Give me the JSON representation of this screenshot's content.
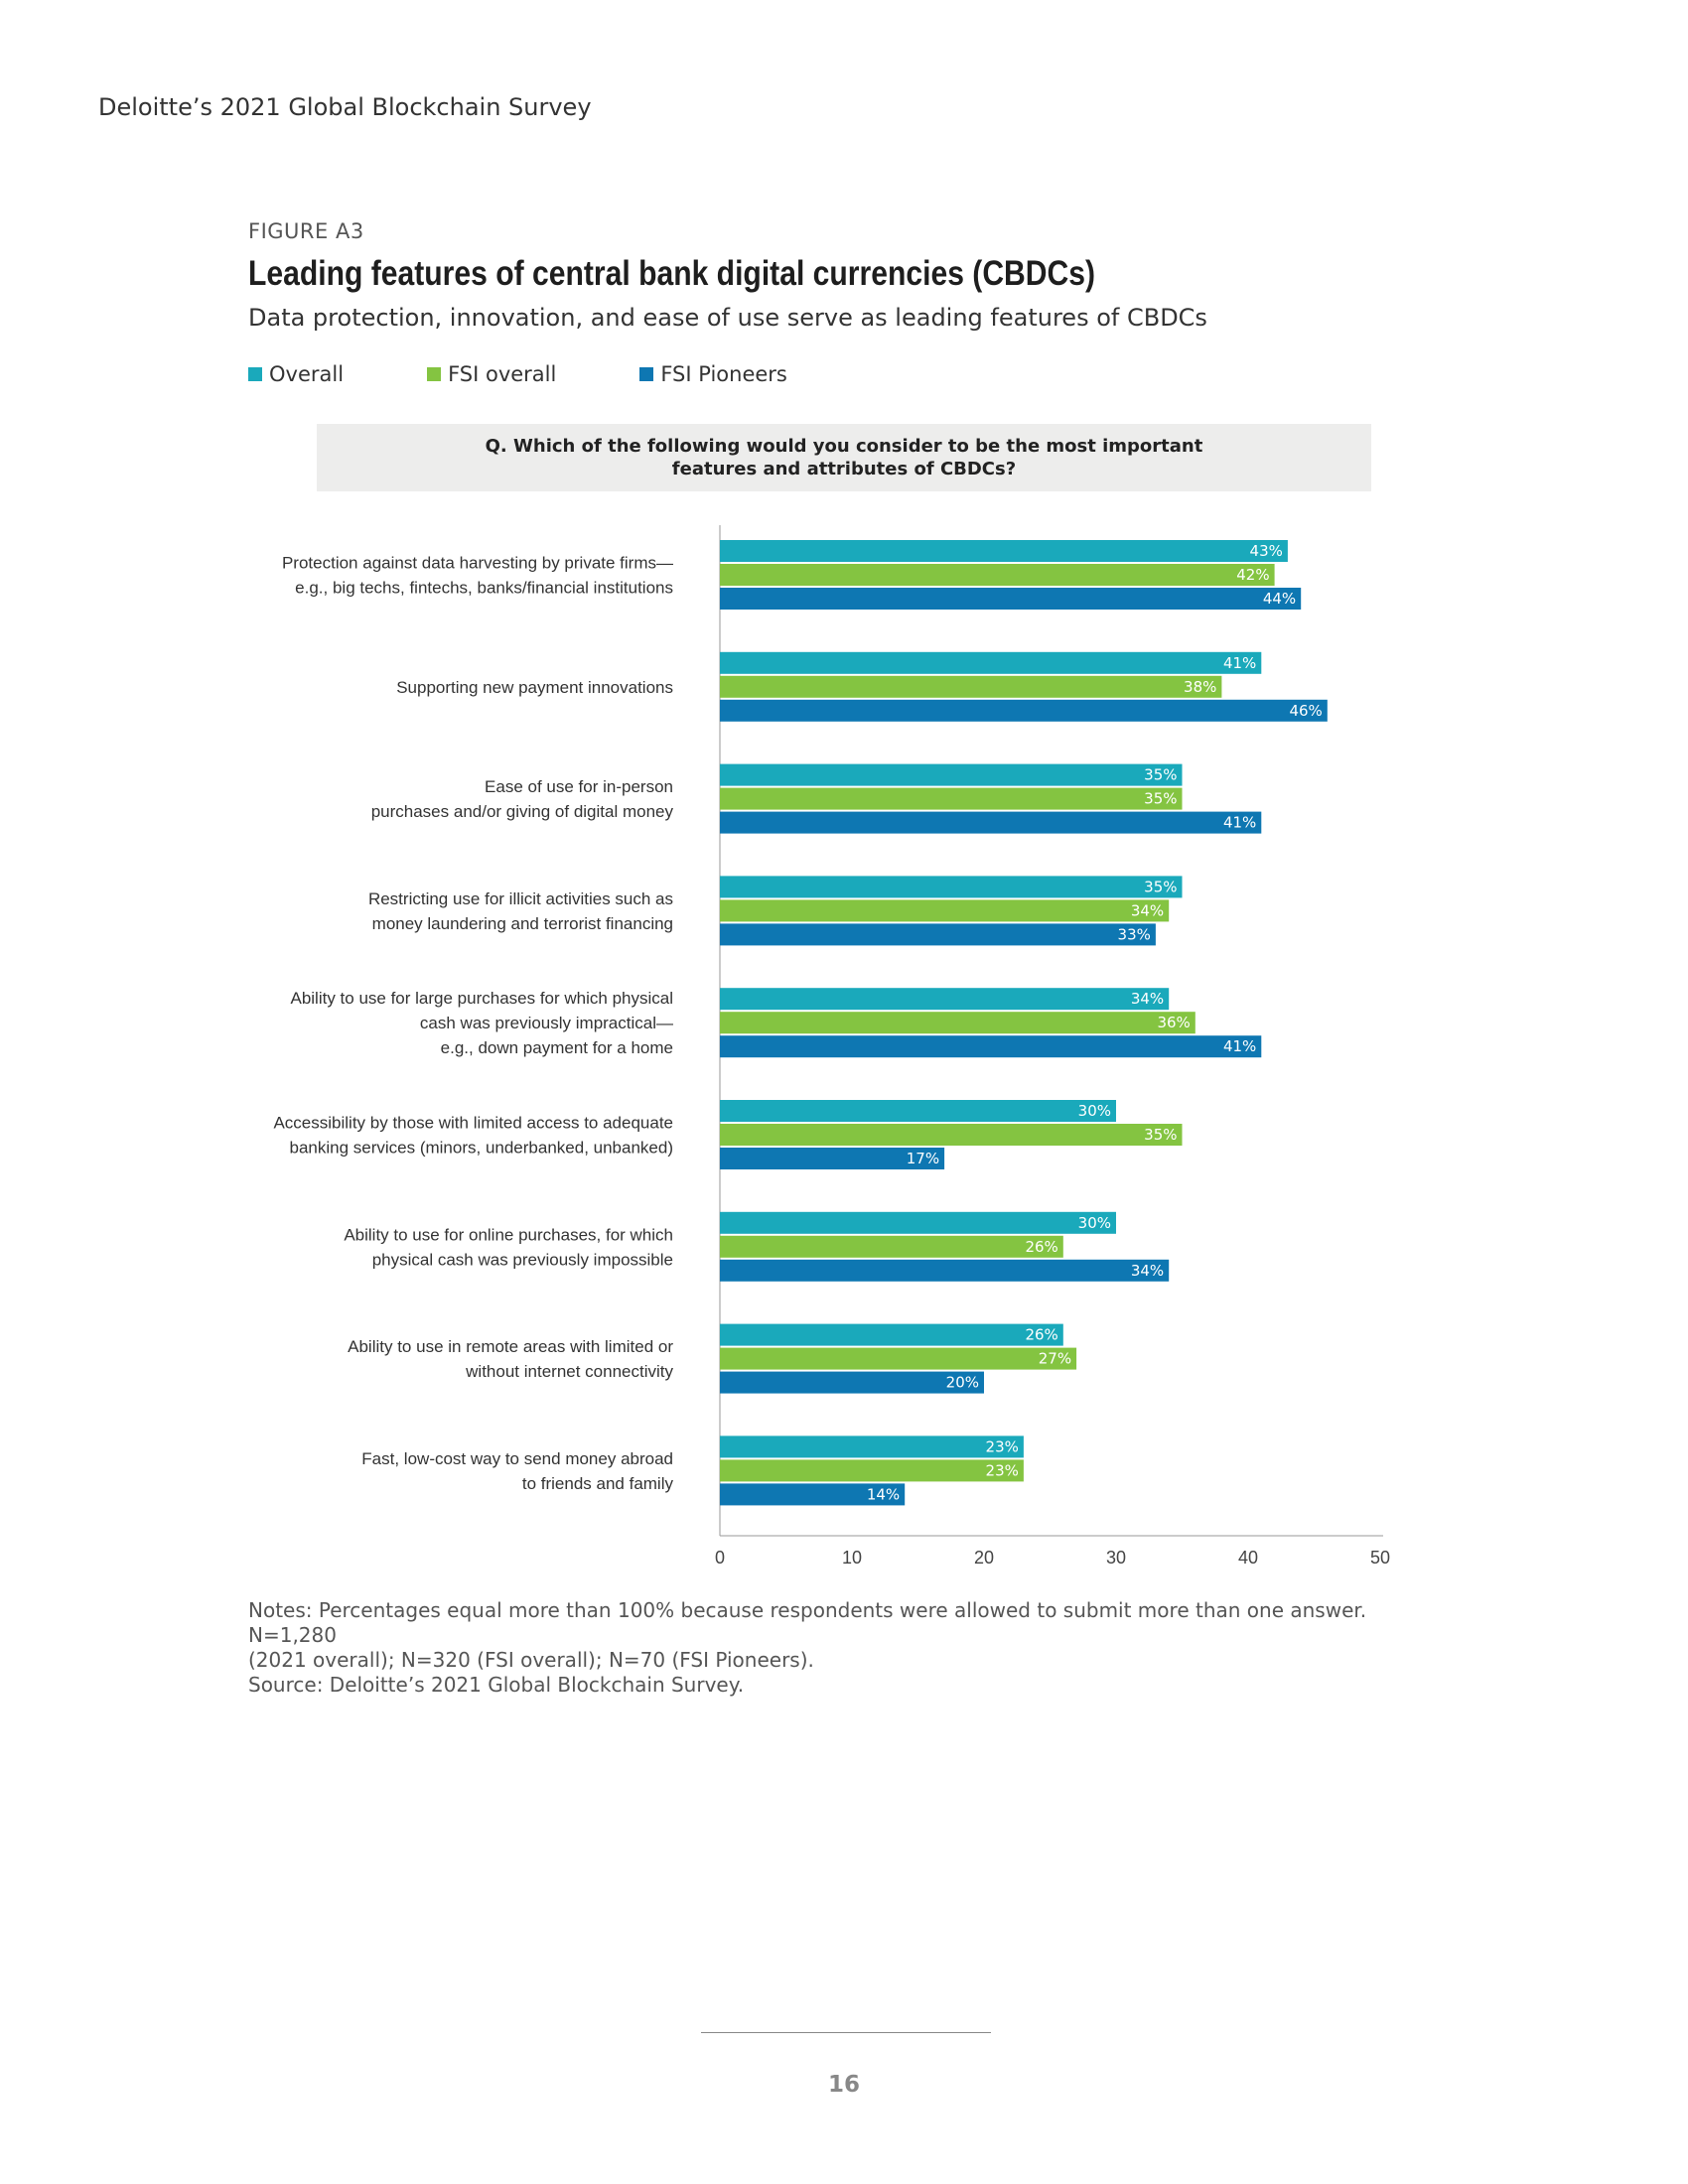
{
  "header": {
    "running_head": "Deloitte’s 2021 Global Blockchain Survey"
  },
  "figure": {
    "label": "FIGURE A3",
    "title": "Leading features of central bank digital currencies (CBDCs)",
    "subtitle": "Data protection, innovation, and ease of use serve as leading features of CBDCs",
    "question_line1": "Q. Which of the following would you consider to be the most important",
    "question_line2": "features and attributes of CBDCs?"
  },
  "legend": [
    {
      "label": "Overall",
      "color": "#1aa9bb"
    },
    {
      "label": "FSI overall",
      "color": "#84c441"
    },
    {
      "label": "FSI Pioneers",
      "color": "#0e77b2"
    }
  ],
  "chart_data": {
    "type": "bar",
    "orientation": "horizontal",
    "categories": [
      [
        "Protection against data harvesting by private firms—",
        "e.g., big techs, fintechs, banks/financial institutions"
      ],
      [
        "Supporting new payment innovations"
      ],
      [
        "Ease of use for in-person",
        "purchases and/or giving of digital money"
      ],
      [
        "Restricting use for illicit activities such as",
        "money laundering and terrorist financing"
      ],
      [
        "Ability to use for large purchases for which physical",
        "cash was previously impractical—",
        "e.g., down payment for a home"
      ],
      [
        "Accessibility by those with limited access to adequate",
        "banking services (minors, underbanked, unbanked)"
      ],
      [
        "Ability to use for online purchases, for which",
        "physical cash was previously impossible"
      ],
      [
        "Ability to use in remote areas with limited or",
        "without internet connectivity"
      ],
      [
        "Fast, low-cost way to send money abroad",
        "to friends and family"
      ]
    ],
    "series": [
      {
        "name": "Overall",
        "color": "#1aa9bb",
        "values": [
          43,
          41,
          35,
          35,
          34,
          30,
          30,
          26,
          23
        ]
      },
      {
        "name": "FSI overall",
        "color": "#84c441",
        "values": [
          42,
          38,
          35,
          34,
          36,
          35,
          26,
          27,
          23
        ]
      },
      {
        "name": "FSI Pioneers",
        "color": "#0e77b2",
        "values": [
          44,
          46,
          41,
          33,
          41,
          17,
          34,
          20,
          14
        ]
      }
    ],
    "value_suffix": "%",
    "xlim": [
      0,
      50
    ],
    "xticks": [
      0,
      10,
      20,
      30,
      40,
      50
    ],
    "grid": false
  },
  "notes": {
    "line1": "Notes: Percentages equal more than 100% because respondents were allowed to submit more than one answer. N=1,280",
    "line2": "(2021 overall); N=320 (FSI overall); N=70 (FSI Pioneers).",
    "source": "Source: Deloitte’s 2021 Global Blockchain Survey."
  },
  "footer": {
    "page_number": "16"
  }
}
